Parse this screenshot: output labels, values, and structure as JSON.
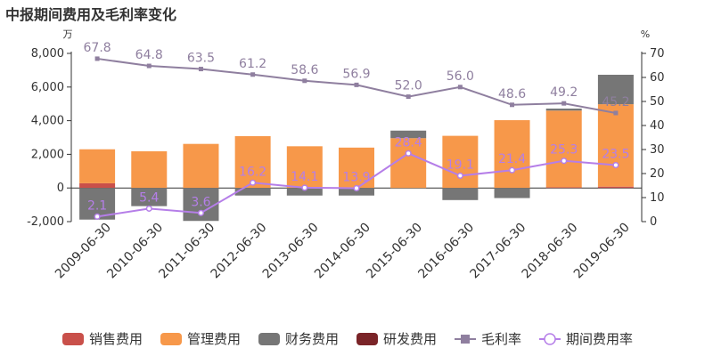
{
  "chart_data": {
    "type": "bar",
    "title": "中报期间费用及毛利率变化",
    "left_unit": "万",
    "right_unit": "%",
    "categories": [
      "2009-06-30",
      "2010-06-30",
      "2011-06-30",
      "2012-06-30",
      "2013-06-30",
      "2014-06-30",
      "2015-06-30",
      "2016-06-30",
      "2017-06-30",
      "2018-06-30",
      "2019-06-30"
    ],
    "y_left_range": [
      -2000,
      8000
    ],
    "y_left_ticks": [
      "-2,000",
      "0",
      "2,000",
      "4,000",
      "6,000",
      "8,000"
    ],
    "y_right_range": [
      0,
      70
    ],
    "y_right_ticks": [
      "0",
      "10",
      "20",
      "30",
      "40",
      "50",
      "60",
      "70"
    ],
    "bar_series": [
      {
        "name": "销售费用",
        "color": "#c9504a",
        "values": [
          280,
          0,
          0,
          0,
          0,
          0,
          0,
          0,
          0,
          40,
          80
        ]
      },
      {
        "name": "管理费用",
        "color": "#f7984a",
        "values": [
          2020,
          2180,
          2620,
          3080,
          2480,
          2400,
          2960,
          3100,
          4030,
          4560,
          4900
        ]
      },
      {
        "name": "财务费用",
        "color": "#767676",
        "values": [
          -1880,
          -1080,
          -1960,
          -450,
          -450,
          -450,
          450,
          -720,
          -600,
          120,
          1750
        ]
      },
      {
        "name": "研发费用",
        "color": "#7a2428",
        "values": [
          0,
          0,
          0,
          0,
          0,
          0,
          0,
          0,
          0,
          0,
          0
        ]
      }
    ],
    "line_series": [
      {
        "name": "毛利率",
        "color": "#8f7f9f",
        "marker": "square",
        "values": [
          67.8,
          64.8,
          63.5,
          61.2,
          58.6,
          56.9,
          52.0,
          56.0,
          48.6,
          49.2,
          45.2
        ],
        "labels": [
          "67.8",
          "64.8",
          "63.5",
          "61.2",
          "58.6",
          "56.9",
          "52.0",
          "56.0",
          "48.6",
          "49.2",
          "45.2"
        ]
      },
      {
        "name": "期间费用率",
        "color": "#b57ee8",
        "marker": "circle",
        "values": [
          2.1,
          5.4,
          3.6,
          16.2,
          14.1,
          13.9,
          28.4,
          19.1,
          21.4,
          25.3,
          23.5
        ],
        "labels": [
          "2.1",
          "5.4",
          "3.6",
          "16.2",
          "14.1",
          "13.9",
          "28.4",
          "19.1",
          "21.4",
          "25.3",
          "23.5"
        ]
      }
    ],
    "legend_position": "bottom",
    "grid": false
  }
}
